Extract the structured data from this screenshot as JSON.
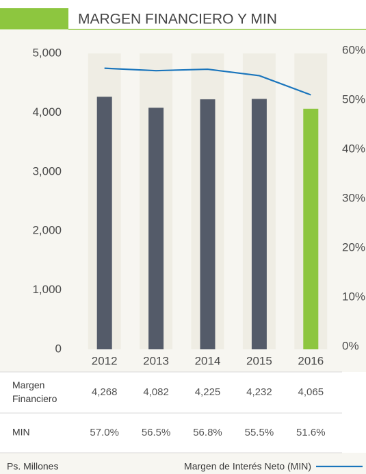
{
  "chart_data": {
    "type": "bar",
    "title": "MARGEN FINANCIERO Y MIN",
    "unit_note": "Ps. Millones",
    "categories": [
      "2012",
      "2013",
      "2014",
      "2015",
      "2016"
    ],
    "series": [
      {
        "name": "Margen Financiero",
        "color": "#545b69",
        "colors": [
          "#545b69",
          "#545b69",
          "#545b69",
          "#545b69",
          "#8dc63f"
        ],
        "values": [
          4268,
          4082,
          4225,
          4232,
          4065
        ],
        "value_labels": [
          "4,268",
          "4,082",
          "4,225",
          "4,232",
          "4,065"
        ]
      },
      {
        "name": "Margen de Interés Neto (MIN)",
        "row_label": "MIN",
        "type": "line",
        "axis": "y2",
        "color": "#1a75bc",
        "values": [
          57.0,
          56.5,
          56.8,
          55.5,
          51.6
        ],
        "value_labels": [
          "57.0%",
          "56.5%",
          "56.8%",
          "55.5%",
          "51.6%"
        ]
      }
    ],
    "ylim": [
      0,
      5000
    ],
    "yticks": [
      0,
      {
        "value": 1000,
        "label": "1,000"
      },
      {
        "value": 2000,
        "label": "2,000"
      },
      {
        "value": 3000,
        "label": "3,000"
      },
      {
        "value": 4000,
        "label": "4,000"
      },
      {
        "value": 5000,
        "label": "5,000"
      }
    ],
    "y2lim": [
      0,
      60
    ],
    "y2ticks": [
      {
        "value": 0,
        "label": "0%"
      },
      {
        "value": 10,
        "label": "10%"
      },
      {
        "value": 20,
        "label": "20%"
      },
      {
        "value": 30,
        "label": "30%"
      },
      {
        "value": 40,
        "label": "40%"
      },
      {
        "value": 50,
        "label": "50%"
      },
      {
        "value": 60,
        "label": "60%"
      }
    ],
    "grid": false,
    "legend": "bottom-right"
  }
}
